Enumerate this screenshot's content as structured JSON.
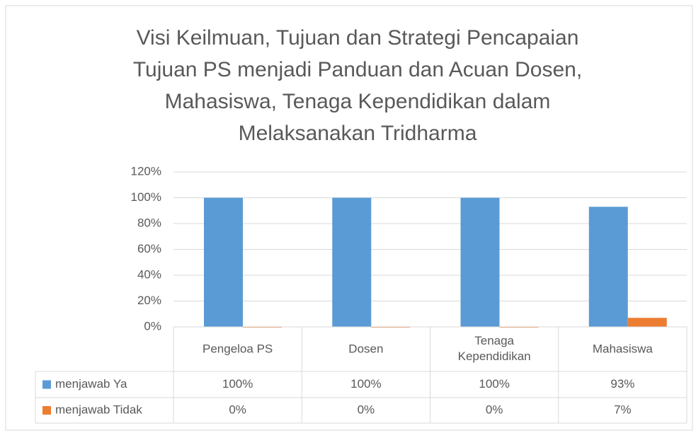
{
  "chart_data": {
    "type": "bar",
    "title": [
      "Visi Keilmuan, Tujuan dan Strategi Pencapaian",
      "Tujuan  PS menjadi Panduan dan Acuan Dosen,",
      "Mahasiswa, Tenaga Kependidikan dalam",
      "Melaksanakan Tridharma"
    ],
    "categories": [
      "Pengeloa PS",
      "Dosen",
      "Tenaga Kependidikan",
      "Mahasiswa"
    ],
    "series": [
      {
        "name": "menjawab Ya",
        "color": "#5b9bd5",
        "values": [
          100,
          100,
          100,
          93
        ],
        "value_labels": [
          "100%",
          "100%",
          "100%",
          "93%"
        ]
      },
      {
        "name": "menjawab Tidak",
        "color": "#ed7d31",
        "values": [
          0,
          0,
          0,
          7
        ],
        "value_labels": [
          "0%",
          "0%",
          "0%",
          "7%"
        ]
      }
    ],
    "ylim": [
      0,
      120
    ],
    "yticks": [
      {
        "value": 0,
        "label": "0%"
      },
      {
        "value": 20,
        "label": "20%"
      },
      {
        "value": 40,
        "label": "40%"
      },
      {
        "value": 60,
        "label": "60%"
      },
      {
        "value": 80,
        "label": "80%"
      },
      {
        "value": 100,
        "label": "100%"
      },
      {
        "value": 120,
        "label": "120%"
      }
    ],
    "grid": true
  }
}
